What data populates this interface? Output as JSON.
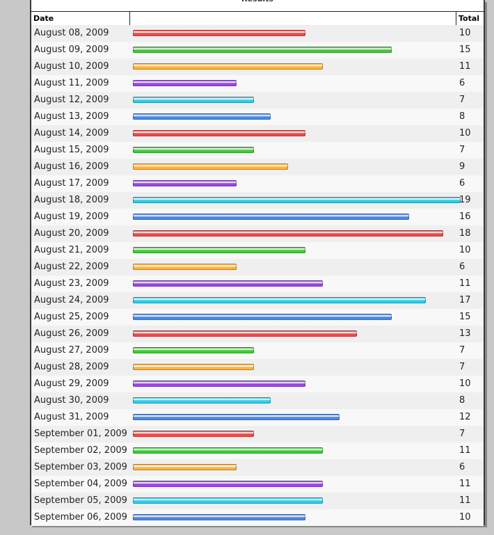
{
  "table": {
    "title": "Results",
    "columns": [
      "Date",
      "Total"
    ],
    "bar_colors": [
      "#f04848",
      "#44c83c",
      "#ffb43c",
      "#9a44e8",
      "#34cce8",
      "#4a88e4"
    ],
    "rows": [
      {
        "date": "August 08, 2009",
        "total": 10
      },
      {
        "date": "August 09, 2009",
        "total": 15
      },
      {
        "date": "August 10, 2009",
        "total": 11
      },
      {
        "date": "August 11, 2009",
        "total": 6
      },
      {
        "date": "August 12, 2009",
        "total": 7
      },
      {
        "date": "August 13, 2009",
        "total": 8
      },
      {
        "date": "August 14, 2009",
        "total": 10
      },
      {
        "date": "August 15, 2009",
        "total": 7
      },
      {
        "date": "August 16, 2009",
        "total": 9
      },
      {
        "date": "August 17, 2009",
        "total": 6
      },
      {
        "date": "August 18, 2009",
        "total": 19
      },
      {
        "date": "August 19, 2009",
        "total": 16
      },
      {
        "date": "August 20, 2009",
        "total": 18
      },
      {
        "date": "August 21, 2009",
        "total": 10
      },
      {
        "date": "August 22, 2009",
        "total": 6
      },
      {
        "date": "August 23, 2009",
        "total": 11
      },
      {
        "date": "August 24, 2009",
        "total": 17
      },
      {
        "date": "August 25, 2009",
        "total": 15
      },
      {
        "date": "August 26, 2009",
        "total": 13
      },
      {
        "date": "August 27, 2009",
        "total": 7
      },
      {
        "date": "August 28, 2009",
        "total": 7
      },
      {
        "date": "August 29, 2009",
        "total": 10
      },
      {
        "date": "August 30, 2009",
        "total": 8
      },
      {
        "date": "August 31, 2009",
        "total": 12
      },
      {
        "date": "September 01, 2009",
        "total": 7
      },
      {
        "date": "September 02, 2009",
        "total": 11
      },
      {
        "date": "September 03, 2009",
        "total": 6
      },
      {
        "date": "September 04, 2009",
        "total": 11
      },
      {
        "date": "September 05, 2009",
        "total": 11
      },
      {
        "date": "September 06, 2009",
        "total": 10
      }
    ]
  }
}
